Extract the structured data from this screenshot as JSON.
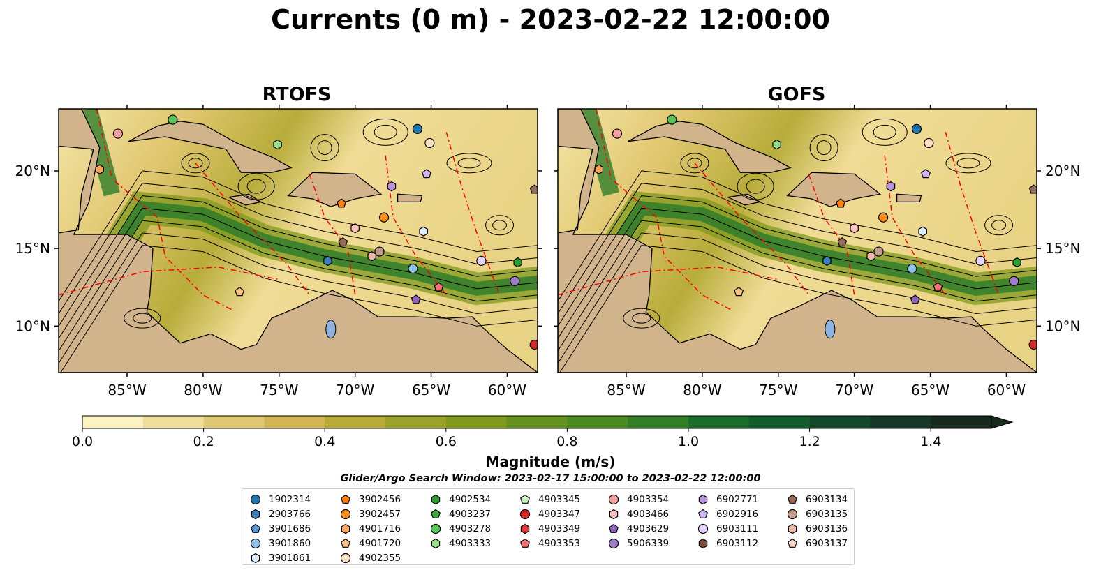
{
  "title": "Currents (0 m) - 2023-02-22 12:00:00",
  "maps": [
    {
      "title": "RTOFS"
    },
    {
      "title": "GOFS"
    }
  ],
  "lon_ticks": [
    "85°W",
    "80°W",
    "75°W",
    "70°W",
    "65°W",
    "60°W"
  ],
  "lat_ticks": [
    "20°N",
    "15°N",
    "10°N"
  ],
  "colorbar": {
    "label": "Magnitude (m/s)",
    "tick_labels": [
      "0.0",
      "0.2",
      "0.4",
      "0.6",
      "0.8",
      "1.0",
      "1.2",
      "1.4"
    ],
    "ticks": [
      0.0,
      0.2,
      0.4,
      0.6,
      0.8,
      1.0,
      1.2,
      1.4
    ],
    "levels": [
      0.0,
      0.1,
      0.2,
      0.3,
      0.4,
      0.5,
      0.6,
      0.7,
      0.8,
      0.9,
      1.0,
      1.1,
      1.2,
      1.3,
      1.4,
      1.5
    ],
    "colors": [
      "#fbf3c2",
      "#f0df9a",
      "#e1c874",
      "#d1b552",
      "#b7ac3a",
      "#9aa22a",
      "#7f9a1e",
      "#64911f",
      "#4c8a24",
      "#337f27",
      "#1c6c2b",
      "#135d2c",
      "#14482a",
      "#163726",
      "#182a1e"
    ],
    "extend": "max"
  },
  "search_window": "Glider/Argo Search Window: 2023-02-17 15:00:00 to 2023-02-22 12:00:00",
  "colors": {
    "land": "#d2b48c",
    "ocean_low": "#f4e6a8",
    "ocean_high": "#2e7d32",
    "eez": "#ff0000"
  },
  "legend": [
    [
      {
        "label": "1902314",
        "marker": "circle",
        "color": "#1f77b4"
      },
      {
        "label": "2903766",
        "marker": "hexagon",
        "color": "#3a7fbf"
      },
      {
        "label": "3901686",
        "marker": "pentagon",
        "color": "#5a9ad6"
      },
      {
        "label": "3901860",
        "marker": "circle",
        "color": "#8cc1ec"
      },
      {
        "label": "3901861",
        "marker": "hexagon",
        "color": "#dceefb"
      }
    ],
    [
      {
        "label": "3902456",
        "marker": "pentagon",
        "color": "#ff7f0e"
      },
      {
        "label": "3902457",
        "marker": "circle",
        "color": "#ff8c1a"
      },
      {
        "label": "4901716",
        "marker": "hexagon",
        "color": "#fda55a"
      },
      {
        "label": "4901720",
        "marker": "pentagon",
        "color": "#fdbf86"
      },
      {
        "label": "4902355",
        "marker": "circle",
        "color": "#fde0c0"
      }
    ],
    [
      {
        "label": "4902534",
        "marker": "hexagon",
        "color": "#2ca02c"
      },
      {
        "label": "4903237",
        "marker": "pentagon",
        "color": "#3cb03c"
      },
      {
        "label": "4903278",
        "marker": "circle",
        "color": "#5cc45c"
      },
      {
        "label": "4903333",
        "marker": "hexagon",
        "color": "#98df8a"
      }
    ],
    [
      {
        "label": "4903345",
        "marker": "pentagon",
        "color": "#c8f5c0"
      },
      {
        "label": "4903347",
        "marker": "circle",
        "color": "#d62728"
      },
      {
        "label": "4903349",
        "marker": "hexagon",
        "color": "#e03a3a"
      },
      {
        "label": "4903353",
        "marker": "pentagon",
        "color": "#f07070"
      }
    ],
    [
      {
        "label": "4903354",
        "marker": "circle",
        "color": "#f4a0a0"
      },
      {
        "label": "4903466",
        "marker": "hexagon",
        "color": "#ffc0c0"
      },
      {
        "label": "4903629",
        "marker": "pentagon",
        "color": "#8e63bd"
      },
      {
        "label": "5906339",
        "marker": "circle",
        "color": "#a07cc8"
      }
    ],
    [
      {
        "label": "6902771",
        "marker": "hexagon",
        "color": "#b894dc"
      },
      {
        "label": "6902916",
        "marker": "pentagon",
        "color": "#d0b4f0"
      },
      {
        "label": "6903111",
        "marker": "circle",
        "color": "#e6d4fa"
      },
      {
        "label": "6903112",
        "marker": "hexagon",
        "color": "#7b4e3e"
      }
    ],
    [
      {
        "label": "6903134",
        "marker": "pentagon",
        "color": "#9a6a5a"
      },
      {
        "label": "6903135",
        "marker": "circle",
        "color": "#c49c8c"
      },
      {
        "label": "6903136",
        "marker": "hexagon",
        "color": "#f0b8a8"
      },
      {
        "label": "6903137",
        "marker": "pentagon",
        "color": "#ffd8c8"
      }
    ]
  ],
  "floats": [
    {
      "id": "4903278",
      "lon": -82.0,
      "lat": 23.3
    },
    {
      "id": "4903354",
      "lon": -85.6,
      "lat": 22.4
    },
    {
      "id": "4901716",
      "lon": -86.8,
      "lat": 20.1
    },
    {
      "id": "4903333",
      "lon": -75.1,
      "lat": 21.7
    },
    {
      "id": "1902314",
      "lon": -65.9,
      "lat": 22.7
    },
    {
      "id": "4902355",
      "lon": -65.1,
      "lat": 21.8
    },
    {
      "id": "6902916",
      "lon": -65.3,
      "lat": 19.8
    },
    {
      "id": "6902771",
      "lon": -67.6,
      "lat": 19.0
    },
    {
      "id": "6903134",
      "lon": -58.2,
      "lat": 18.8
    },
    {
      "id": "3902456",
      "lon": -70.9,
      "lat": 17.9
    },
    {
      "id": "3902457",
      "lon": -68.1,
      "lat": 17.0
    },
    {
      "id": "4903466",
      "lon": -70.0,
      "lat": 16.3
    },
    {
      "id": "3901861",
      "lon": -65.5,
      "lat": 16.1
    },
    {
      "id": "6903134",
      "lon": -70.8,
      "lat": 15.4
    },
    {
      "id": "6903135",
      "lon": -68.4,
      "lat": 14.8
    },
    {
      "id": "6903136",
      "lon": -68.9,
      "lat": 14.5
    },
    {
      "id": "2903766",
      "lon": -71.8,
      "lat": 14.2
    },
    {
      "id": "6903111",
      "lon": -61.7,
      "lat": 14.2
    },
    {
      "id": "4902534",
      "lon": -59.3,
      "lat": 14.1
    },
    {
      "id": "3901860",
      "lon": -66.2,
      "lat": 13.7
    },
    {
      "id": "5906339",
      "lon": -59.5,
      "lat": 12.9
    },
    {
      "id": "4903353",
      "lon": -64.5,
      "lat": 12.5
    },
    {
      "id": "4901720",
      "lon": -77.6,
      "lat": 12.2
    },
    {
      "id": "4903629",
      "lon": -66.0,
      "lat": 11.7
    },
    {
      "id": "4903347",
      "lon": -58.2,
      "lat": 8.8
    }
  ]
}
